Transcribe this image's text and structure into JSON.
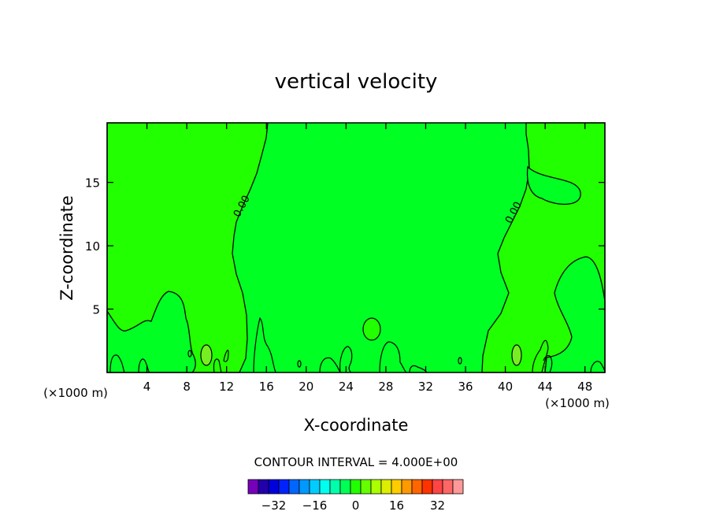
{
  "chart_data": {
    "type": "contour",
    "title": "vertical velocity",
    "xlabel": "X-coordinate",
    "ylabel": "Z-coordinate",
    "x_unit": "(×1000 m)",
    "x_ticks": [
      4,
      8,
      12,
      16,
      20,
      24,
      28,
      32,
      36,
      40,
      44,
      48
    ],
    "y_ticks": [
      5,
      10,
      15
    ],
    "xlim": [
      0,
      50
    ],
    "ylim": [
      0,
      19.7
    ],
    "contour_interval_label": "CONTOUR INTERVAL = 4.000E+00",
    "contour_labels": [
      {
        "text": "0.00",
        "x": 13.8,
        "y": 13.0
      },
      {
        "text": "0.00",
        "x": 41.1,
        "y": 12.5
      }
    ],
    "regions": [
      {
        "name": "left-positive",
        "level": 2,
        "color": "#22ff00"
      },
      {
        "name": "central",
        "level": -2,
        "color": "#00ff22"
      },
      {
        "name": "right-positive",
        "level": 2,
        "color": "#22ff00"
      }
    ],
    "colorbar": {
      "ticks": [
        "-32",
        "-16",
        "0",
        "16",
        "32"
      ],
      "colors": [
        "#7700bb",
        "#2200aa",
        "#0000dd",
        "#0022ff",
        "#0066ff",
        "#0099ff",
        "#00ccff",
        "#00ffee",
        "#00ffaa",
        "#00ff55",
        "#22ff00",
        "#66ff00",
        "#aaff00",
        "#ddee00",
        "#ffcc00",
        "#ff9900",
        "#ff6600",
        "#ff3300",
        "#ff4444",
        "#ff6666",
        "#ff9999"
      ]
    }
  }
}
